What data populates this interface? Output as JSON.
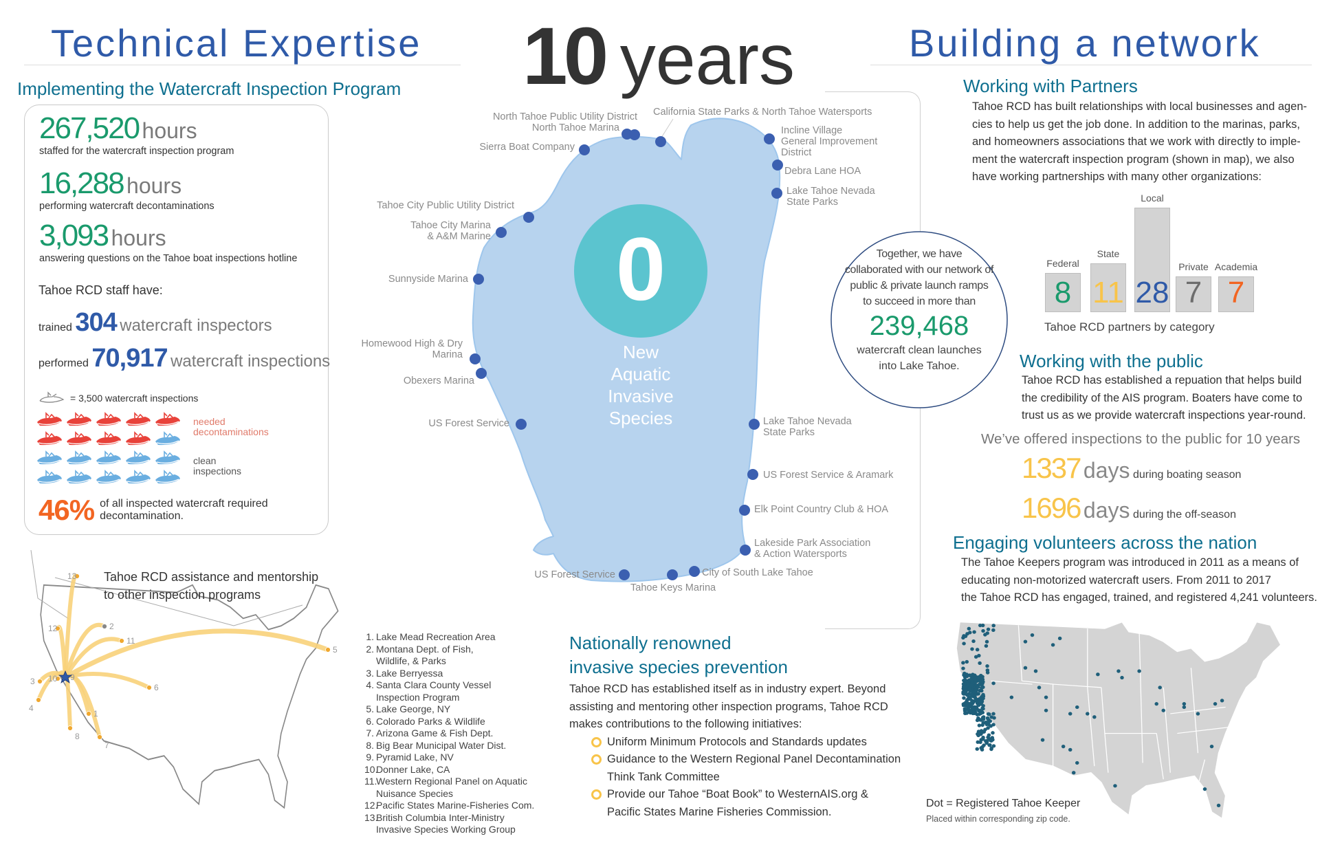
{
  "left": {
    "title": "Technical Expertise",
    "subtitle": "Implementing the Watercraft Inspection Program",
    "stats": [
      {
        "value": "267,520",
        "unit": "hours",
        "caption": "staffed for the watercraft inspection program"
      },
      {
        "value": "16,288",
        "unit": "hours",
        "caption": "performing watercraft decontaminations"
      },
      {
        "value": "3,093",
        "unit": "hours",
        "caption": "answering questions on the Tahoe boat inspections hotline"
      }
    ],
    "staff_intro": "Tahoe RCD staff have:",
    "trained": {
      "prefix": "trained",
      "value": "304",
      "suffix": "watercraft inspectors"
    },
    "performed": {
      "prefix": "performed",
      "value": "70,917",
      "suffix": "watercraft inspections"
    },
    "boat_legend": "= 3,500 watercraft inspections",
    "boat_counts": {
      "needed_decontamination": 9,
      "clean": 11
    },
    "needed_label": [
      "needed",
      "decontaminations"
    ],
    "clean_label": [
      "clean",
      "inspections"
    ],
    "percent": {
      "value": "46%",
      "text": [
        "of all inspected watercraft required",
        "decontamination."
      ]
    },
    "colors": {
      "needed": "#e8423a",
      "clean": "#6aaee0",
      "percent": "#f26522",
      "stat": "#1a9a6c",
      "highlight": "#2f5aa8"
    }
  },
  "mentorship": {
    "caption": [
      "Tahoe RCD assistance and mentorship",
      "to other inspection programs"
    ],
    "marker_numbers": [
      "1",
      "2",
      "3",
      "4",
      "5",
      "6",
      "7",
      "8",
      "9",
      "10",
      "11",
      "12",
      "13"
    ],
    "programs": [
      {
        "n": "1.",
        "lines": [
          "Lake Mead Recreation Area"
        ]
      },
      {
        "n": "2.",
        "lines": [
          "Montana Dept. of Fish,",
          "Wildlife, & Parks"
        ]
      },
      {
        "n": "3.",
        "lines": [
          "Lake Berryessa"
        ]
      },
      {
        "n": "4.",
        "lines": [
          "Santa Clara County Vessel",
          "Inspection Program"
        ]
      },
      {
        "n": "5.",
        "lines": [
          "Lake George, NY"
        ]
      },
      {
        "n": "6.",
        "lines": [
          "Colorado Parks & Wildlife"
        ]
      },
      {
        "n": "7.",
        "lines": [
          "Arizona Game & Fish Dept."
        ]
      },
      {
        "n": "8.",
        "lines": [
          "Big Bear Municipal Water Dist."
        ]
      },
      {
        "n": "9.",
        "lines": [
          "Pyramid Lake, NV"
        ]
      },
      {
        "n": "10.",
        "lines": [
          "Donner Lake, CA"
        ]
      },
      {
        "n": "11.",
        "lines": [
          "Western Regional Panel on Aquatic",
          "Nuisance Species"
        ]
      },
      {
        "n": "12.",
        "lines": [
          "Pacific States Marine-Fisheries Com."
        ]
      },
      {
        "n": "13.",
        "lines": [
          "British Columbia Inter-Ministry",
          "Invasive Species Working Group"
        ]
      }
    ]
  },
  "center": {
    "years_number": "10",
    "years_word": "years",
    "zero": "0",
    "zero_caption": [
      "New",
      "Aquatic",
      "Invasive",
      "Species"
    ],
    "lake_labels": [
      {
        "lines": [
          "North Tahoe Public Utility District"
        ]
      },
      {
        "lines": [
          "North Tahoe Marina"
        ]
      },
      {
        "lines": [
          "California State Parks & North Tahoe Watersports"
        ]
      },
      {
        "lines": [
          "Sierra Boat Company"
        ]
      },
      {
        "lines": [
          "Incline Village",
          "General Improvement",
          "District"
        ]
      },
      {
        "lines": [
          "Debra Lane HOA"
        ]
      },
      {
        "lines": [
          "Lake Tahoe Nevada",
          "State Parks"
        ]
      },
      {
        "lines": [
          "Tahoe City Public Utility District"
        ]
      },
      {
        "lines": [
          "Tahoe City Marina",
          "& A&M Marine"
        ]
      },
      {
        "lines": [
          "Sunnyside Marina"
        ]
      },
      {
        "lines": [
          "Homewood High & Dry",
          "Marina"
        ]
      },
      {
        "lines": [
          "Obexers Marina"
        ]
      },
      {
        "lines": [
          "US Forest Service"
        ]
      },
      {
        "lines": [
          "Lake Tahoe Nevada",
          "State Parks"
        ]
      },
      {
        "lines": [
          "US Forest Service & Aramark"
        ]
      },
      {
        "lines": [
          "Elk Point Country Club & HOA"
        ]
      },
      {
        "lines": [
          "Lakeside Park Association",
          "& Action Watersports"
        ]
      },
      {
        "lines": [
          "City of South Lake Tahoe"
        ]
      },
      {
        "lines": [
          "US Forest Service"
        ]
      },
      {
        "lines": [
          "Tahoe Keys Marina"
        ]
      }
    ],
    "circle": {
      "lines_before": [
        "Together, we have",
        "collaborated with our network of",
        "public & private launch ramps",
        "to succeed in more than"
      ],
      "value": "239,468",
      "lines_after": [
        "watercraft clean launches",
        "into Lake Tahoe."
      ]
    },
    "national": {
      "title": [
        "Nationally renowned",
        "invasive species prevention"
      ],
      "body": [
        "Tahoe RCD has established itself as in industry expert. Beyond",
        "assisting and mentoring other inspection programs, Tahoe RCD",
        "makes contributions to the following initiatives:"
      ],
      "bullets": [
        [
          "Uniform Minimum Protocols and Standards updates"
        ],
        [
          "Guidance to the Western Regional Panel Decontamination",
          "Think Tank Committee"
        ],
        [
          "Provide our Tahoe “Boat Book” to WesternAIS.org  &",
          "Pacific States Marine Fisheries Commission."
        ]
      ]
    },
    "colors": {
      "lake": "#b7d3ee",
      "zero_circle": "#5bc4cf",
      "dot": "#3b5fb0"
    }
  },
  "right": {
    "title": "Building a network",
    "partners": {
      "title": "Working with Partners",
      "body": [
        "Tahoe RCD has built relationships with local businesses and agen-",
        "cies to help us get the job done. In addition to the marinas, parks,",
        "and homeowners associations that we work with directly to imple-",
        "ment the watercraft inspection program (shown in map), we also",
        "have working partnerships with many other organizations:"
      ]
    },
    "chart_data": {
      "type": "bar",
      "title": "Tahoe RCD partners by category",
      "categories": [
        "Federal",
        "State",
        "Local",
        "Private",
        "Academia"
      ],
      "values": [
        8,
        11,
        28,
        7,
        7
      ],
      "value_colors": [
        "#1a9a6c",
        "#f8c44a",
        "#2f5aa8",
        "#6d6d6d",
        "#f26522"
      ]
    },
    "public": {
      "title": "Working with the public",
      "body": [
        "Tahoe RCD has established a repuation that helps build",
        "the credibility of the AIS program.  Boaters have come to",
        "trust us as we provide watercraft inspections year-round."
      ],
      "offered": "We’ve offered inspections to the public for 10 years",
      "days": [
        {
          "value": "1337",
          "unit": "days",
          "caption": "during boating season"
        },
        {
          "value": "1696",
          "unit": "days",
          "caption": "during the off-season"
        }
      ]
    },
    "volunteers": {
      "title": "Engaging volunteers across the nation",
      "body": [
        "The Tahoe Keepers program was introduced in 2011 as a means of",
        "educating non-motorized watercraft users. From 2011 to 2017",
        "the Tahoe RCD has engaged, trained, and registered 4,241 volunteers."
      ],
      "legend": "Dot = Registered Tahoe Keeper",
      "legend_note": "Placed within  corresponding zip code."
    }
  }
}
